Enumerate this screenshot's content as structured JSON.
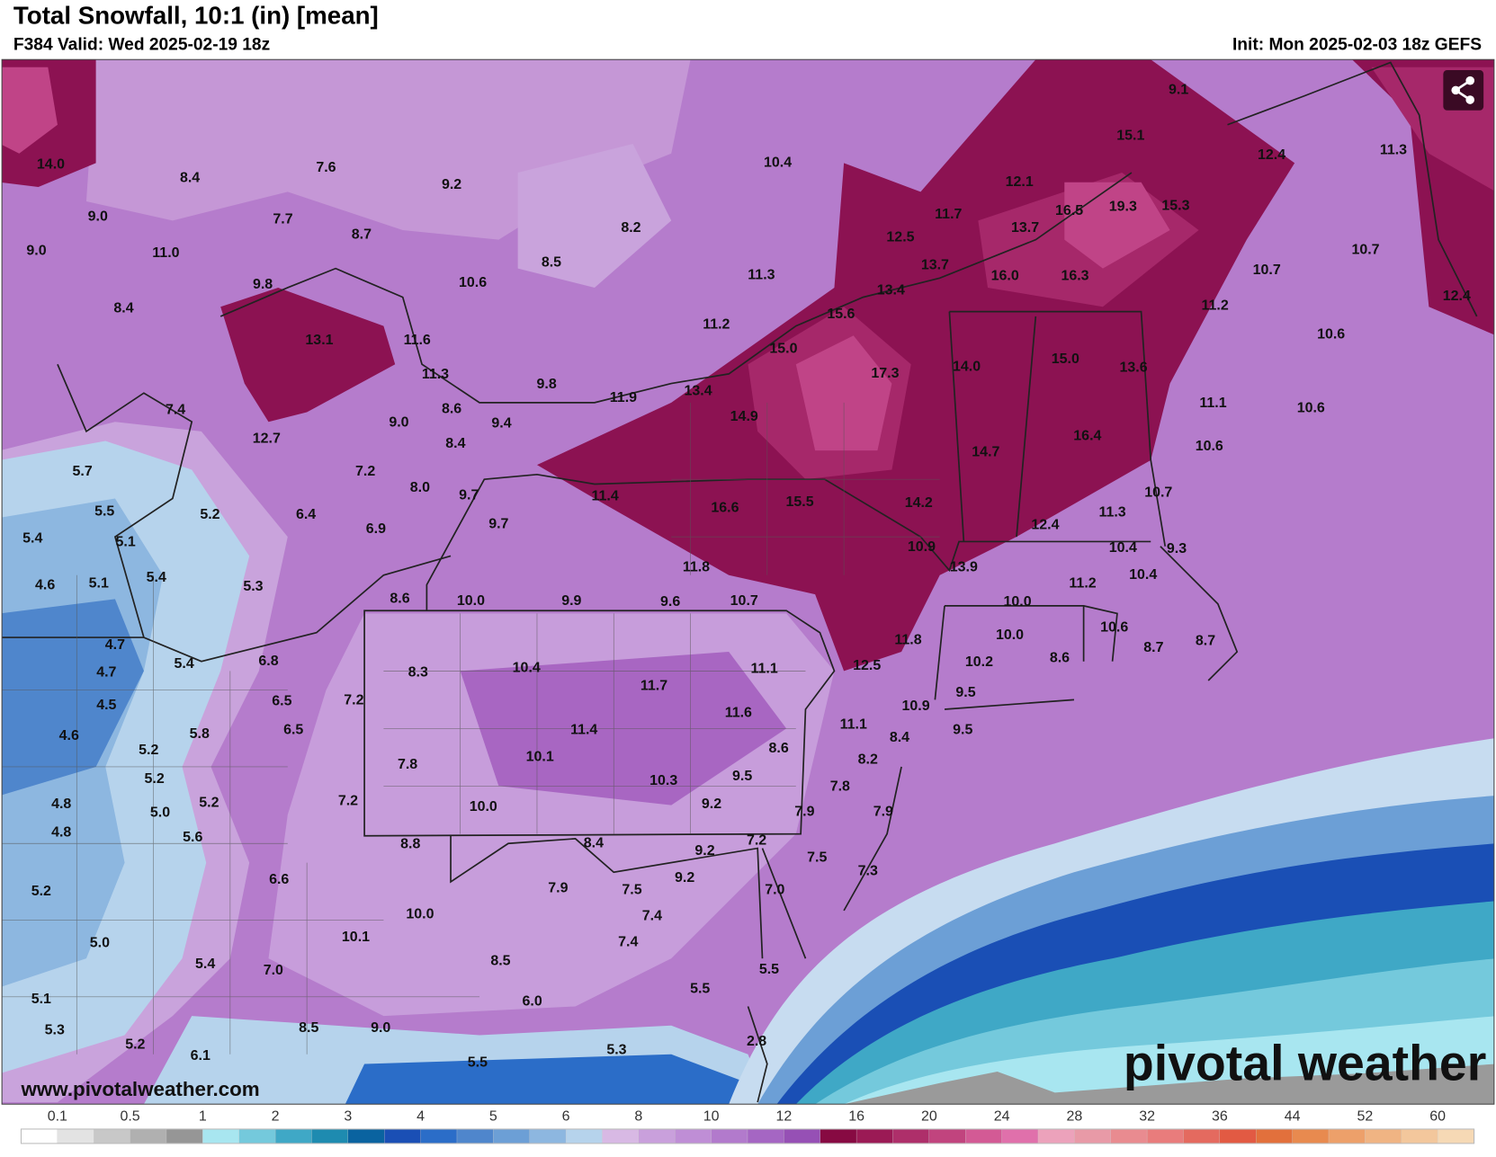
{
  "header": {
    "title": "Total Snowfall, 10:1 (in) [mean]",
    "valid": "F384 Valid: Wed 2025-02-19 18z",
    "init": "Init: Mon 2025-02-03 18z GEFS"
  },
  "map": {
    "labels": [
      "14.0",
      "8.4",
      "7.6",
      "9.2",
      "10.4",
      "9.1",
      "15.1",
      "12.4",
      "11.3",
      "9.0",
      "7.7",
      "8.7",
      "8.2",
      "12.1",
      "11.7",
      "12.5",
      "16.5",
      "19.3",
      "15.3",
      "13.7",
      "9.0",
      "11.0",
      "8.5",
      "11.3",
      "13.7",
      "16.0",
      "16.3",
      "10.7",
      "10.7",
      "9.8",
      "10.6",
      "13.4",
      "11.2",
      "12.4",
      "8.4",
      "13.1",
      "11.6",
      "11.2",
      "15.6",
      "15.0",
      "17.3",
      "14.0",
      "15.0",
      "13.6",
      "10.6",
      "11.3",
      "9.8",
      "11.9",
      "13.4",
      "11.1",
      "10.6",
      "7.4",
      "8.6",
      "9.0",
      "9.4",
      "14.9",
      "12.7",
      "8.4",
      "16.4",
      "14.7",
      "10.6",
      "5.7",
      "7.2",
      "8.0",
      "9.7",
      "11.4",
      "16.6",
      "15.5",
      "14.2",
      "10.7",
      "5.5",
      "5.2",
      "6.4",
      "6.9",
      "9.7",
      "11.3",
      "12.4",
      "5.4",
      "5.1",
      "10.9",
      "10.4",
      "9.3",
      "4.6",
      "5.1",
      "5.4",
      "5.3",
      "11.8",
      "13.9",
      "11.2",
      "10.4",
      "8.6",
      "10.0",
      "9.9",
      "9.6",
      "10.7",
      "10.0",
      "4.7",
      "5.4",
      "6.8",
      "11.8",
      "10.0",
      "10.6",
      "8.7",
      "8.7",
      "4.7",
      "8.3",
      "10.4",
      "11.1",
      "12.5",
      "10.2",
      "8.6",
      "4.5",
      "6.5",
      "7.2",
      "11.7",
      "9.5",
      "4.6",
      "5.8",
      "6.5",
      "11.6",
      "11.4",
      "10.9",
      "11.1",
      "9.5",
      "8.4",
      "5.2",
      "8.6",
      "8.2",
      "10.1",
      "7.8",
      "5.2",
      "9.5",
      "10.3",
      "7.8",
      "4.8",
      "5.0",
      "5.2",
      "7.2",
      "10.0",
      "9.2",
      "7.9",
      "7.9",
      "4.8",
      "5.6",
      "8.8",
      "8.4",
      "9.2",
      "7.2",
      "7.5",
      "7.3",
      "9.2",
      "6.6",
      "5.2",
      "7.9",
      "7.5",
      "7.0",
      "7.4",
      "10.0",
      "10.1",
      "5.0",
      "7.4",
      "5.4",
      "7.0",
      "8.5",
      "5.5",
      "5.5",
      "5.1",
      "6.0",
      "5.3",
      "8.5",
      "9.0",
      "2.8",
      "5.2",
      "6.1",
      "5.5",
      "5.3"
    ]
  },
  "footer": {
    "website": "www.pivotalweather.com",
    "logo": "pivotal weather"
  },
  "colorbar": {
    "ticks": [
      0.1,
      0.5,
      1,
      2,
      3,
      4,
      5,
      6,
      8,
      10,
      12,
      16,
      20,
      24,
      28,
      32,
      36,
      44,
      52,
      60
    ],
    "colors": [
      "#ffffff",
      "#e3e3e3",
      "#c8c8c8",
      "#b0b0b0",
      "#969696",
      "#a8e6f0",
      "#74c9dc",
      "#3fa8c6",
      "#1e8bb0",
      "#0a63a0",
      "#1a4fb5",
      "#2b6dc8",
      "#4f86cc",
      "#6c9fd6",
      "#8db7e0",
      "#b6d3ec",
      "#d8b9e4",
      "#c9a0dc",
      "#bf8ed6",
      "#b27acc",
      "#a566c3",
      "#9650b5",
      "#870a42",
      "#9b1a55",
      "#ae2f6a",
      "#c1447e",
      "#d35a95",
      "#e070ab",
      "#eca2bb",
      "#e89aa7",
      "#e98b90",
      "#e97c7c",
      "#e46a5f",
      "#e25a43",
      "#e2703c",
      "#e88a4f",
      "#eda06a",
      "#f0b483",
      "#f3c79c",
      "#f6d9b5"
    ]
  }
}
